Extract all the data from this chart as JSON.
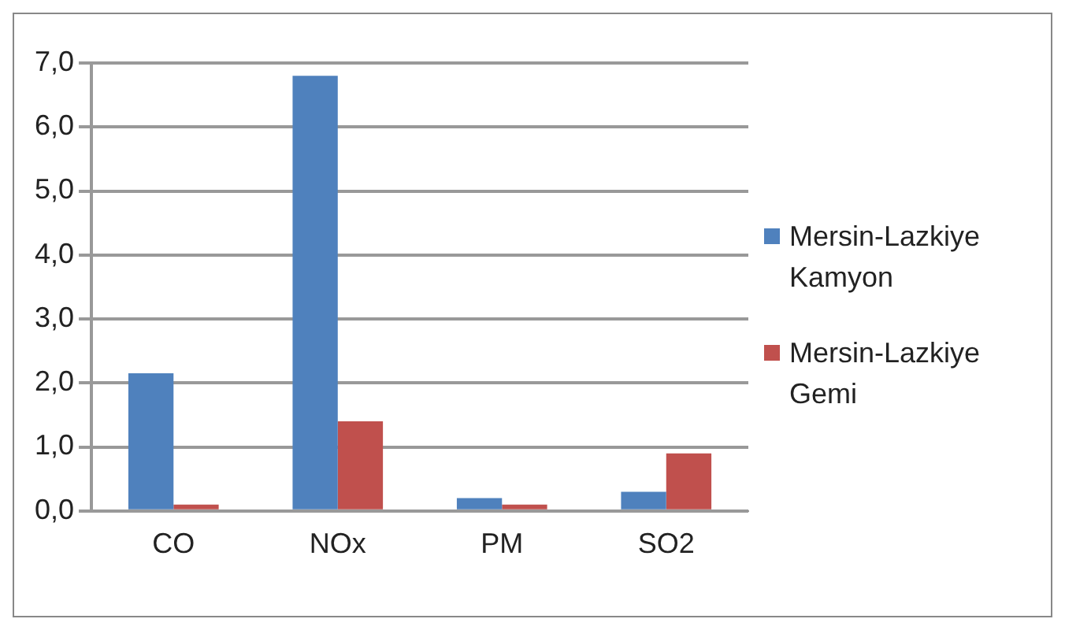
{
  "chart_data": {
    "type": "bar",
    "categories": [
      "CO",
      "NOx",
      "PM",
      "SO2"
    ],
    "series": [
      {
        "name": "Mersin-Lazkiye Kamyon",
        "color": "#4f81bd",
        "values": [
          2.15,
          6.8,
          0.2,
          0.3
        ]
      },
      {
        "name": "Mersin-Lazkiye Gemi",
        "color": "#c0504d",
        "values": [
          0.1,
          1.4,
          0.1,
          0.9
        ]
      }
    ],
    "ylim": [
      0,
      7
    ],
    "yticks": [
      {
        "value": 0,
        "label": "0,0"
      },
      {
        "value": 1,
        "label": "1,0"
      },
      {
        "value": 2,
        "label": "2,0"
      },
      {
        "value": 3,
        "label": "3,0"
      },
      {
        "value": 4,
        "label": "4,0"
      },
      {
        "value": 5,
        "label": "5,0"
      },
      {
        "value": 6,
        "label": "6,0"
      },
      {
        "value": 7,
        "label": "7,0"
      }
    ],
    "grid": "y",
    "legend": "right"
  }
}
